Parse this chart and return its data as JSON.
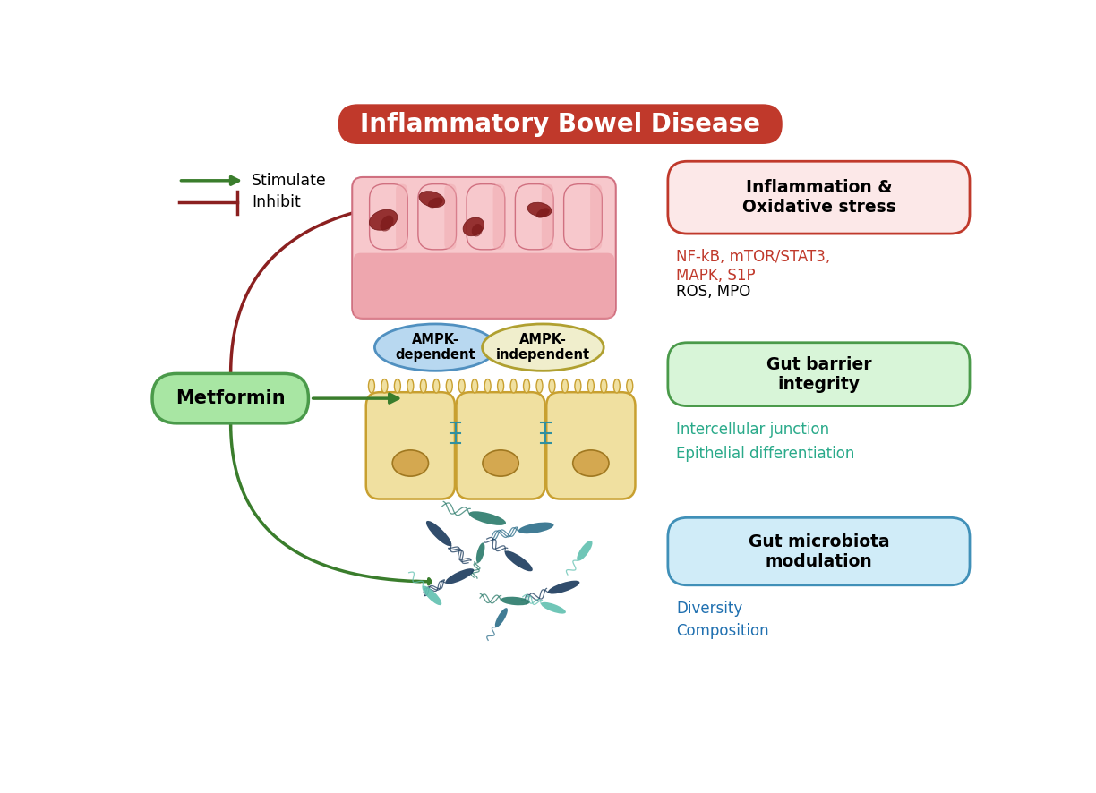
{
  "title": "Inflammatory Bowel Disease",
  "title_bg": "#c0392b",
  "title_fg": "#ffffff",
  "metformin_label": "Metformin",
  "metformin_bg": "#a8e6a3",
  "metformin_border": "#4a9a4a",
  "stimulate_color": "#3a7d2c",
  "inhibit_color": "#8b2020",
  "ampk_dep_label": "AMPK-\ndependent",
  "ampk_dep_bg": "#b8d8f0",
  "ampk_dep_border": "#5090c0",
  "ampk_indep_label": "AMPK-\nindependent",
  "ampk_indep_bg": "#f0eecc",
  "ampk_indep_border": "#b0a030",
  "box1_title": "Inflammation &\nOxidative stress",
  "box1_bg": "#fce8e8",
  "box1_border": "#c0392b",
  "box1_red_text": "NF-kB, mTOR/STAT3,\nMAPK, S1P",
  "box1_black_text": "ROS, MPO",
  "box1_red_color": "#c0392b",
  "box2_title": "Gut barrier\nintegrity",
  "box2_bg": "#d8f5d8",
  "box2_border": "#4a9a4a",
  "box2_teal_text1": "Intercellular junction",
  "box2_teal_text2": "Epithelial differentiation",
  "box2_teal_color": "#2aaa8a",
  "box3_title": "Gut microbiota\nmodulation",
  "box3_bg": "#d0ecf8",
  "box3_border": "#4090b8",
  "box3_blue_text1": "Diversity",
  "box3_blue_text2": "Composition",
  "box3_blue_color": "#2070b0",
  "bg_color": "#ffffff",
  "tissue_pink_light": "#f7c8cc",
  "tissue_pink_mid": "#f0aab0",
  "tissue_pink_inner": "#e8909a",
  "tissue_border": "#d07080",
  "lesion_color": "#8b2020",
  "cell_fill": "#f0e0a0",
  "cell_border": "#c8a030",
  "nucleus_fill": "#d4a850",
  "nucleus_border": "#a07820",
  "bact_dark_blue": "#1a3a5c",
  "bact_teal": "#1a7a6a",
  "bact_mid_blue": "#2c6e8a",
  "bact_light_teal": "#60c0b0"
}
